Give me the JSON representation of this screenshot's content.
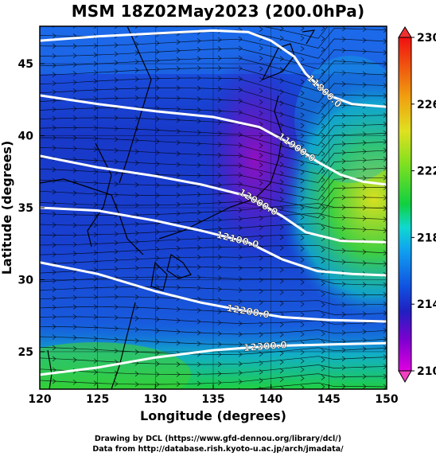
{
  "title": "MSM 18Z02May2023 (200.0hPa)",
  "xlabel": "Longitude (degrees)",
  "ylabel": "Latitude  (degrees)",
  "x_ticks": [
    "120",
    "125",
    "130",
    "135",
    "140",
    "145",
    "150"
  ],
  "y_ticks": [
    "25",
    "30",
    "35",
    "40",
    "45"
  ],
  "colorbar": {
    "ticks": [
      "210",
      "214",
      "218",
      "222",
      "226",
      "230"
    ],
    "colors": [
      "#e000e0",
      "#8000d0",
      "#2020c0",
      "#1050e0",
      "#10a0f0",
      "#10d8d0",
      "#10d040",
      "#80e020",
      "#e0e020",
      "#f0a010",
      "#f05010",
      "#f01010"
    ]
  },
  "contour_labels": [
    "11800.0",
    "11900.0",
    "12000.0",
    "12100.0",
    "12200.0",
    "12300.0"
  ],
  "credits": {
    "line1": "Drawing by DCL (https://www.gfd-dennou.org/library/dcl/)",
    "line2": "Data from http://database.rish.kyoto-u.ac.jp/arch/jmadata/"
  },
  "chart_data": {
    "type": "heatmap",
    "title": "MSM 18Z02May2023 (200.0hPa)",
    "xlabel": "Longitude (degrees)",
    "ylabel": "Latitude  (degrees)",
    "xlim": [
      120,
      150
    ],
    "ylim": [
      22.4,
      47.6
    ],
    "color_range": [
      210,
      230
    ],
    "grid": true,
    "contours": [
      {
        "level": 11800.0,
        "points": [
          [
            120,
            46.6
          ],
          [
            125,
            46.9
          ],
          [
            130,
            47.1
          ],
          [
            135,
            47.3
          ],
          [
            138,
            47.2
          ],
          [
            140,
            46.6
          ],
          [
            142,
            45.5
          ],
          [
            143,
            44.3
          ],
          [
            145,
            42.8
          ],
          [
            147,
            42.2
          ],
          [
            150,
            42.0
          ]
        ]
      },
      {
        "level": 11900.0,
        "points": [
          [
            120,
            42.8
          ],
          [
            125,
            42.2
          ],
          [
            130,
            41.7
          ],
          [
            135,
            41.3
          ],
          [
            139,
            40.6
          ],
          [
            142,
            39.3
          ],
          [
            144,
            38.2
          ],
          [
            146,
            37.3
          ],
          [
            148,
            36.8
          ],
          [
            150,
            36.6
          ]
        ]
      },
      {
        "level": 12000.0,
        "points": [
          [
            120,
            38.6
          ],
          [
            125,
            37.8
          ],
          [
            130,
            37.2
          ],
          [
            134,
            36.6
          ],
          [
            138,
            35.8
          ],
          [
            141,
            34.4
          ],
          [
            143,
            33.3
          ],
          [
            146,
            32.7
          ],
          [
            150,
            32.6
          ]
        ]
      },
      {
        "level": 12100.0,
        "points": [
          [
            120,
            35.0
          ],
          [
            125,
            34.8
          ],
          [
            130,
            34.1
          ],
          [
            134,
            33.4
          ],
          [
            138,
            32.6
          ],
          [
            141,
            31.4
          ],
          [
            144,
            30.6
          ],
          [
            147,
            30.4
          ],
          [
            150,
            30.3
          ]
        ]
      },
      {
        "level": 12200.0,
        "points": [
          [
            120,
            31.2
          ],
          [
            125,
            30.4
          ],
          [
            130,
            29.2
          ],
          [
            134,
            28.4
          ],
          [
            138,
            27.8
          ],
          [
            141,
            27.4
          ],
          [
            145,
            27.2
          ],
          [
            150,
            27.1
          ]
        ]
      },
      {
        "level": 12300.0,
        "points": [
          [
            120,
            23.4
          ],
          [
            125,
            23.9
          ],
          [
            130,
            24.6
          ],
          [
            135,
            25.1
          ],
          [
            140,
            25.4
          ],
          [
            145,
            25.5
          ],
          [
            150,
            25.6
          ]
        ]
      }
    ],
    "temperature_regions": [
      {
        "description": "warm core",
        "center": [
          148,
          35
        ],
        "value": 221
      },
      {
        "description": "cold core",
        "center": [
          140,
          40
        ],
        "value": 211
      },
      {
        "description": "warm south",
        "center": [
          135,
          24
        ],
        "value": 219
      }
    ]
  }
}
